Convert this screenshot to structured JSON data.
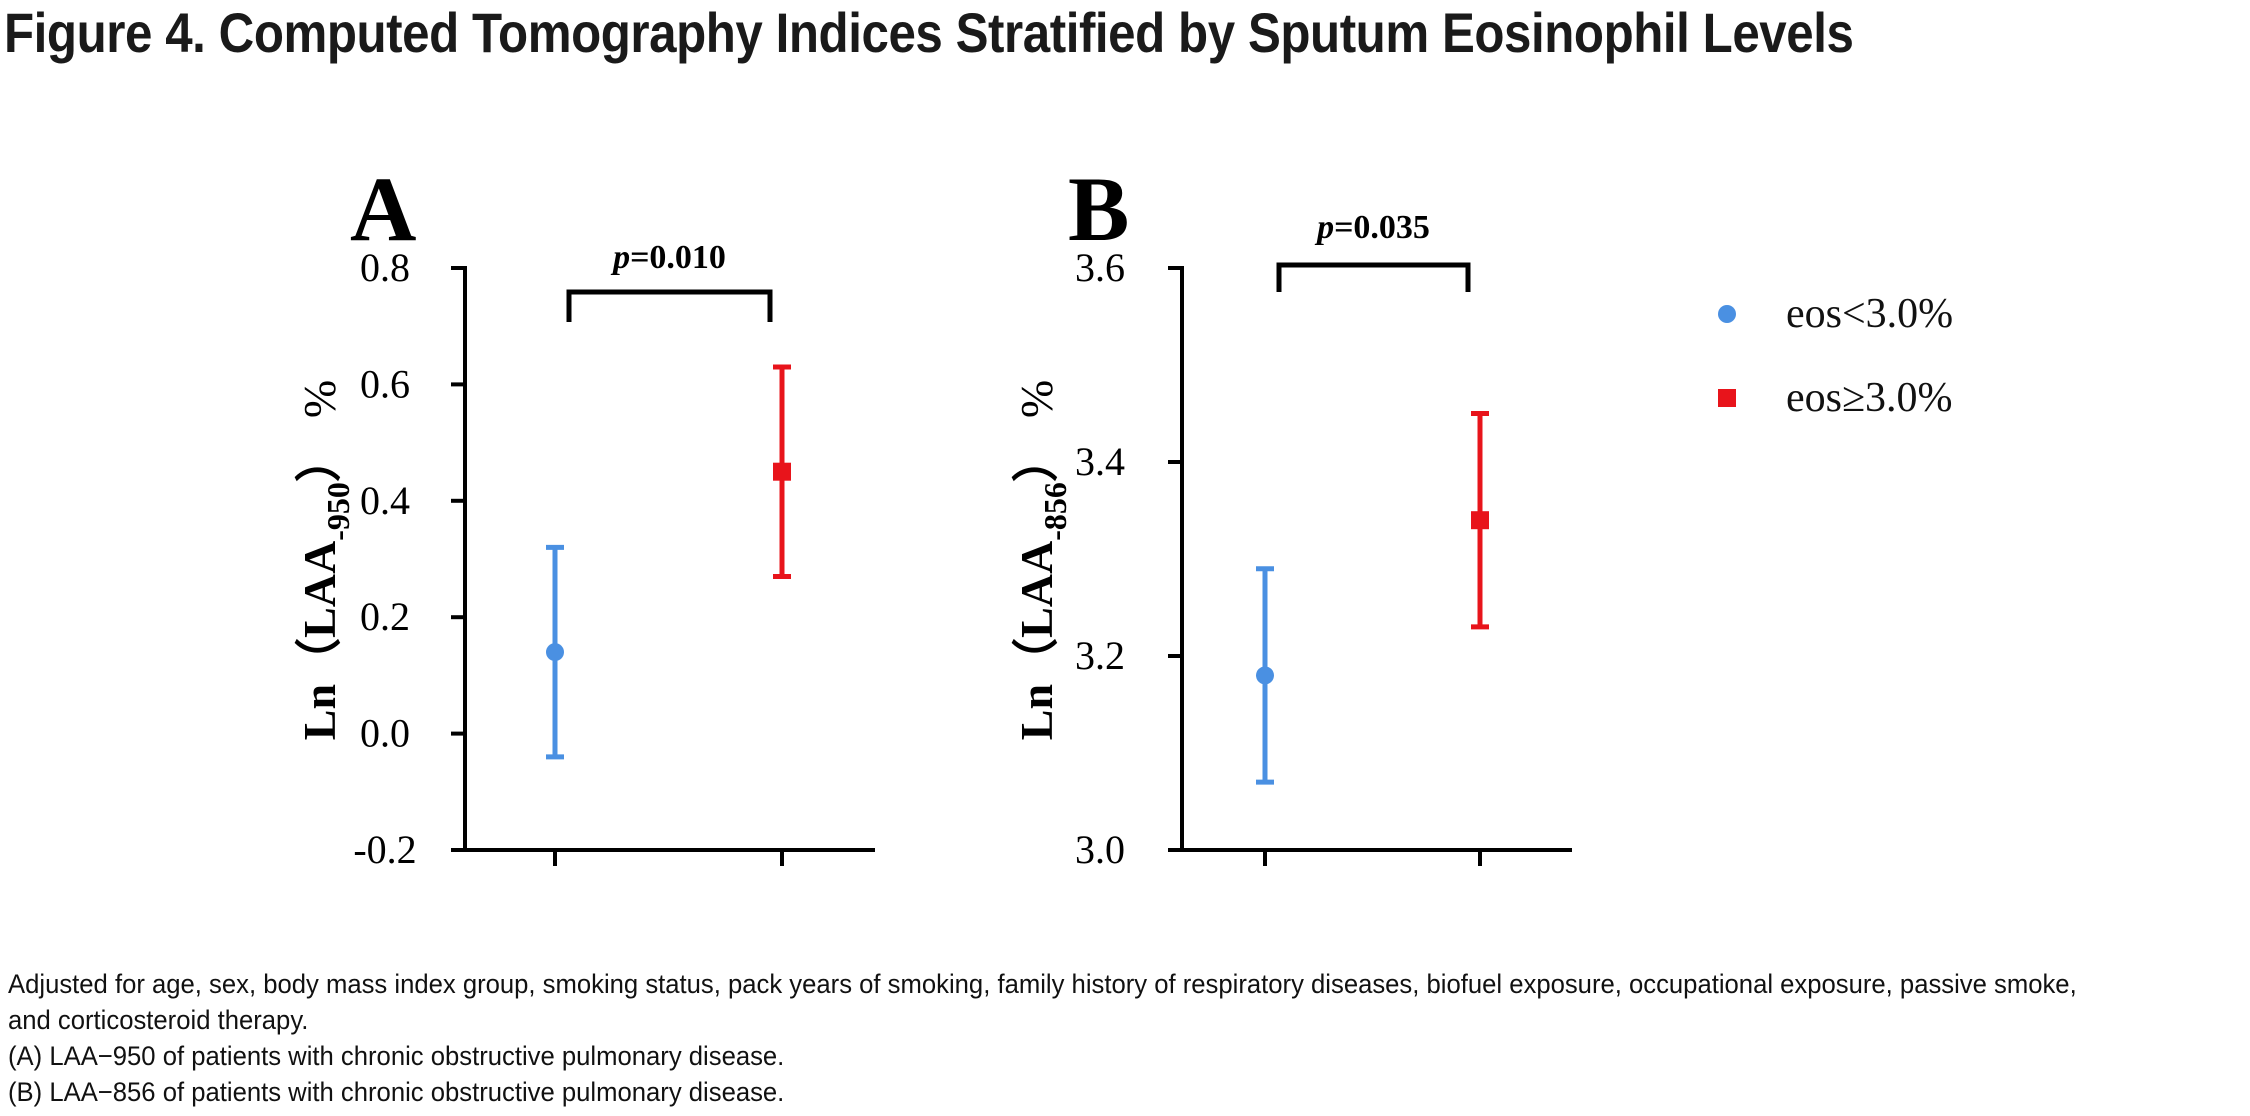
{
  "figure": {
    "title": "Figure 4. Computed Tomography Indices Stratified by Sputum Eosinophil  Levels",
    "caption": [
      "Adjusted for age, sex, body mass index group, smoking status, pack years of smoking, family history of respiratory diseases, biofuel exposure, occupational exposure, passive smoke,",
      "and corticosteroid therapy.",
      "(A) LAA−950 of patients with chronic obstructive pulmonary disease.",
      "(B) LAA−856 of patients with chronic obstructive pulmonary disease."
    ]
  },
  "legend": {
    "items": [
      {
        "label": "eos<3.0%",
        "shape": "circle",
        "color": "#4a90e2"
      },
      {
        "label": "eos≥3.0%",
        "shape": "square",
        "color": "#e8141b"
      }
    ]
  },
  "chart_data": [
    {
      "type": "scatter",
      "panel_label": "A",
      "ylabel": "Ln（LAA-950）%",
      "ylabel_main": "Ln（LAA",
      "ylabel_sub": "-950",
      "ylabel_close": "）",
      "ylabel_unit": "%",
      "ylim": [
        -0.2,
        0.8
      ],
      "yticks": [
        -0.2,
        0.0,
        0.2,
        0.4,
        0.6,
        0.8
      ],
      "ytick_labels": [
        "-0.2",
        "0.0",
        "0.2",
        "0.4",
        "0.6",
        "0.8"
      ],
      "series": [
        {
          "name": "eos<3.0%",
          "color": "#4a90e2",
          "marker": "circle",
          "y": 0.14,
          "lower": -0.04,
          "upper": 0.32
        },
        {
          "name": "eos≥3.0%",
          "color": "#e8141b",
          "marker": "square",
          "y": 0.45,
          "lower": 0.27,
          "upper": 0.63
        }
      ],
      "annotation": {
        "p_prefix": "p",
        "p_value": "=0.010"
      }
    },
    {
      "type": "scatter",
      "panel_label": "B",
      "ylabel": "Ln（LAA-856）%",
      "ylabel_main": "Ln（LAA",
      "ylabel_sub": "-856",
      "ylabel_close": "）",
      "ylabel_unit": "%",
      "ylim": [
        3.0,
        3.6
      ],
      "yticks": [
        3.0,
        3.2,
        3.4,
        3.6
      ],
      "ytick_labels": [
        "3.0",
        "3.2",
        "3.4",
        "3.6"
      ],
      "series": [
        {
          "name": "eos<3.0%",
          "color": "#4a90e2",
          "marker": "circle",
          "y": 3.18,
          "lower": 3.07,
          "upper": 3.29
        },
        {
          "name": "eos≥3.0%",
          "color": "#e8141b",
          "marker": "square",
          "y": 3.34,
          "lower": 3.23,
          "upper": 3.45
        }
      ],
      "annotation": {
        "p_prefix": "p",
        "p_value": "=0.035"
      }
    }
  ]
}
